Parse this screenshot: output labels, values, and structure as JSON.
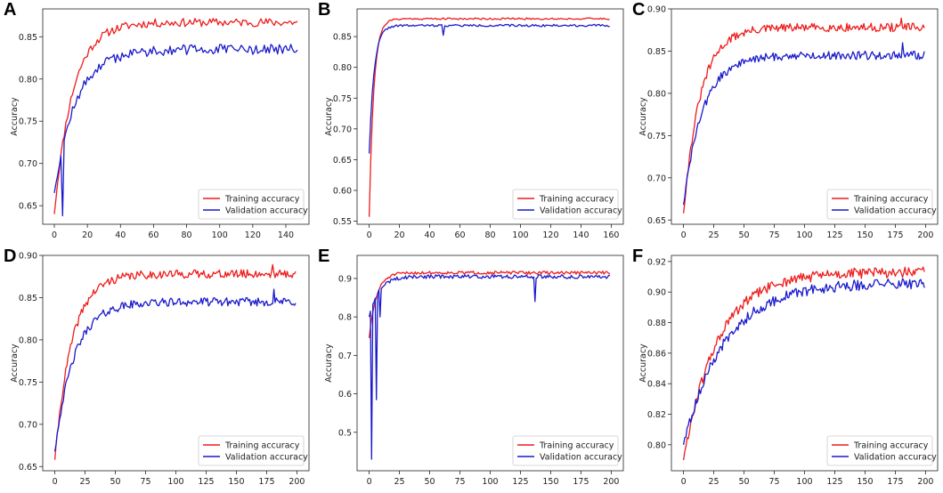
{
  "figure": {
    "panels": [
      "A",
      "B",
      "C",
      "D",
      "E",
      "F"
    ]
  },
  "colors": {
    "training": "#ee1c1c",
    "validation": "#1a1acc",
    "axis": "#222222"
  },
  "chart_data": [
    {
      "panel": "A",
      "type": "line",
      "ylabel": "Accuracy",
      "xlim": [
        -7,
        154
      ],
      "ylim": [
        0.628,
        0.883
      ],
      "xticks": [
        0,
        20,
        40,
        60,
        80,
        100,
        120,
        140
      ],
      "yticks": [
        0.65,
        0.7,
        0.75,
        0.8,
        0.85
      ],
      "ytick_labels": [
        "0.65",
        "0.70",
        "0.75",
        "0.80",
        "0.85"
      ],
      "legend": [
        "Training accuracy",
        "Validation accuracy"
      ],
      "series": [
        {
          "name": "Training accuracy",
          "n": 148,
          "start": 0.64,
          "end": 0.867,
          "tau": 11,
          "noise": 0.005,
          "seed": 11
        },
        {
          "name": "Validation accuracy",
          "n": 148,
          "start": 0.665,
          "end": 0.835,
          "tau": 13,
          "noise": 0.006,
          "seed": 12,
          "spikes": [
            [
              5,
              0.638
            ]
          ]
        }
      ]
    },
    {
      "panel": "B",
      "type": "line",
      "ylabel": "Accuracy",
      "xlim": [
        -8,
        168
      ],
      "ylim": [
        0.545,
        0.895
      ],
      "xticks": [
        0,
        20,
        40,
        60,
        80,
        100,
        120,
        140,
        160
      ],
      "yticks": [
        0.55,
        0.6,
        0.65,
        0.7,
        0.75,
        0.8,
        0.85
      ],
      "ytick_labels": [
        "0.55",
        "0.60",
        "0.65",
        "0.70",
        "0.75",
        "0.80",
        "0.85"
      ],
      "legend": [
        "Training accuracy",
        "Validation accuracy"
      ],
      "series": [
        {
          "name": "Training accuracy",
          "n": 160,
          "start": 0.557,
          "end": 0.879,
          "tau": 3,
          "noise": 0.0015,
          "seed": 21
        },
        {
          "name": "Validation accuracy",
          "n": 160,
          "start": 0.66,
          "end": 0.868,
          "tau": 3.2,
          "noise": 0.0018,
          "seed": 22,
          "spikes": [
            [
              49,
              0.852
            ]
          ]
        }
      ]
    },
    {
      "panel": "C",
      "type": "line",
      "ylabel": "Accuracy",
      "xlim": [
        -10,
        210
      ],
      "ylim": [
        0.645,
        0.9
      ],
      "xticks": [
        0,
        25,
        50,
        75,
        100,
        125,
        150,
        175,
        200
      ],
      "yticks": [
        0.65,
        0.7,
        0.75,
        0.8,
        0.85,
        0.9
      ],
      "ytick_labels": [
        "0.65",
        "0.70",
        "0.75",
        "0.80",
        "0.85",
        "0.90"
      ],
      "legend": [
        "Training accuracy",
        "Validation accuracy"
      ],
      "series": [
        {
          "name": "Training accuracy",
          "n": 200,
          "start": 0.658,
          "end": 0.878,
          "tau": 14,
          "noise": 0.005,
          "seed": 31,
          "spikes": [
            [
              180,
              0.889
            ]
          ]
        },
        {
          "name": "Validation accuracy",
          "n": 200,
          "start": 0.668,
          "end": 0.845,
          "tau": 16,
          "noise": 0.005,
          "seed": 32,
          "spikes": [
            [
              181,
              0.86
            ]
          ]
        }
      ]
    },
    {
      "panel": "D",
      "type": "line",
      "ylabel": "Accuracy",
      "xlim": [
        -10,
        210
      ],
      "ylim": [
        0.645,
        0.9
      ],
      "xticks": [
        0,
        25,
        50,
        75,
        100,
        125,
        150,
        175,
        200
      ],
      "yticks": [
        0.65,
        0.7,
        0.75,
        0.8,
        0.85,
        0.9
      ],
      "ytick_labels": [
        "0.65",
        "0.70",
        "0.75",
        "0.80",
        "0.85",
        "0.90"
      ],
      "legend": [
        "Training accuracy",
        "Validation accuracy"
      ],
      "series": [
        {
          "name": "Training accuracy",
          "n": 200,
          "start": 0.658,
          "end": 0.878,
          "tau": 14,
          "noise": 0.005,
          "seed": 41,
          "spikes": [
            [
              180,
              0.889
            ]
          ]
        },
        {
          "name": "Validation accuracy",
          "n": 200,
          "start": 0.668,
          "end": 0.845,
          "tau": 16,
          "noise": 0.005,
          "seed": 42,
          "spikes": [
            [
              181,
              0.86
            ]
          ]
        }
      ]
    },
    {
      "panel": "E",
      "type": "line",
      "ylabel": "Accuracy",
      "xlim": [
        -10,
        210
      ],
      "ylim": [
        0.4,
        0.96
      ],
      "xticks": [
        0,
        25,
        50,
        75,
        100,
        125,
        150,
        175,
        200
      ],
      "yticks": [
        0.5,
        0.6,
        0.7,
        0.8,
        0.9
      ],
      "ytick_labels": [
        "0.5",
        "0.6",
        "0.7",
        "0.8",
        "0.9"
      ],
      "legend": [
        "Training accuracy",
        "Validation accuracy"
      ],
      "series": [
        {
          "name": "Training accuracy",
          "n": 200,
          "start": 0.745,
          "end": 0.915,
          "tau": 6,
          "noise": 0.004,
          "seed": 51
        },
        {
          "name": "Validation accuracy",
          "n": 200,
          "start": 0.8,
          "end": 0.905,
          "tau": 8,
          "noise": 0.005,
          "seed": 52,
          "spikes": [
            [
              2,
              0.43
            ],
            [
              6,
              0.585
            ],
            [
              9,
              0.8
            ],
            [
              137,
              0.84
            ]
          ]
        }
      ]
    },
    {
      "panel": "F",
      "type": "line",
      "ylabel": "Accuracy",
      "xlim": [
        -10,
        210
      ],
      "ylim": [
        0.783,
        0.924
      ],
      "xticks": [
        0,
        25,
        50,
        75,
        100,
        125,
        150,
        175,
        200
      ],
      "yticks": [
        0.8,
        0.82,
        0.84,
        0.86,
        0.88,
        0.9,
        0.92
      ],
      "ytick_labels": [
        "0.80",
        "0.82",
        "0.84",
        "0.86",
        "0.88",
        "0.90",
        "0.92"
      ],
      "legend": [
        "Training accuracy",
        "Validation accuracy"
      ],
      "series": [
        {
          "name": "Training accuracy",
          "n": 200,
          "start": 0.79,
          "end": 0.913,
          "tau": 28,
          "noise": 0.0035,
          "seed": 61
        },
        {
          "name": "Validation accuracy",
          "n": 200,
          "start": 0.8,
          "end": 0.906,
          "tau": 34,
          "noise": 0.0035,
          "seed": 62
        }
      ]
    }
  ]
}
